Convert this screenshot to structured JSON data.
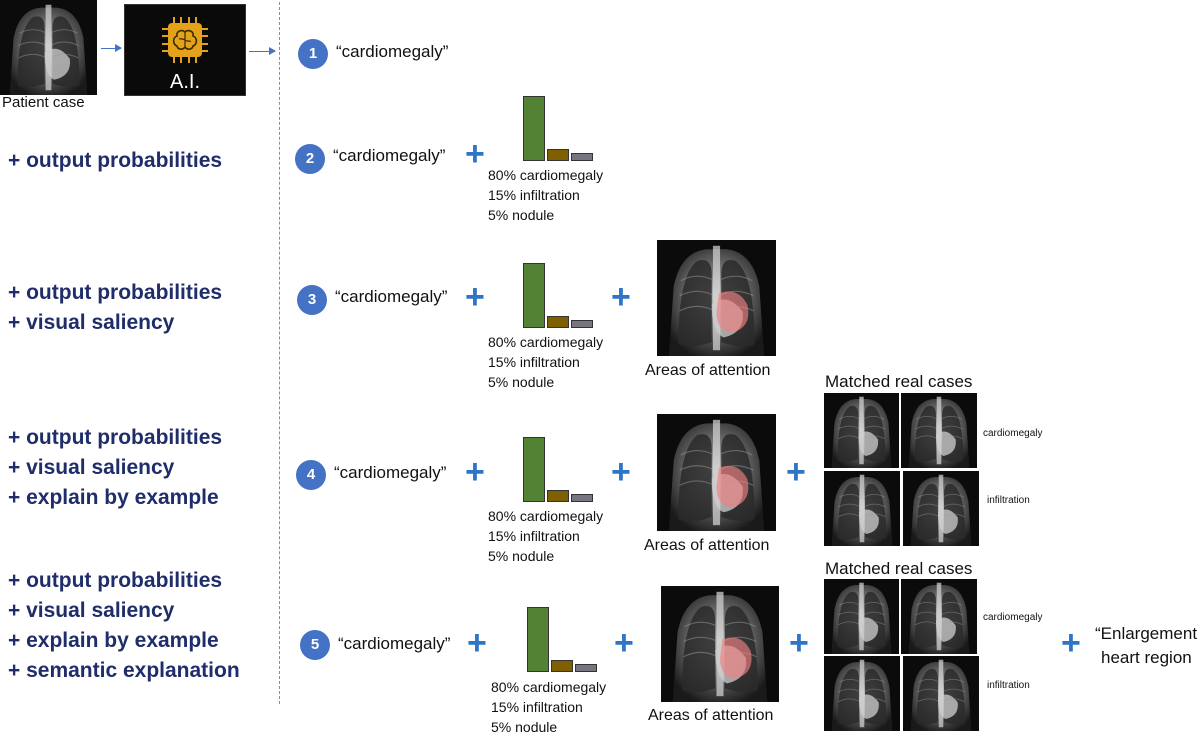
{
  "header": {
    "patient_case_label": "Patient case",
    "ai_label": "A.I."
  },
  "left_labels": {
    "row2": [
      "+ output probabilities"
    ],
    "row3": [
      "+ output probabilities",
      "+ visual saliency"
    ],
    "row4": [
      "+ output probabilities",
      "+ visual saliency",
      "+ explain by example"
    ],
    "row5": [
      "+ output probabilities",
      "+ visual saliency",
      "+ explain by example",
      "+ semantic explanation"
    ]
  },
  "rows": [
    {
      "number": "1",
      "prediction": "“cardiomegaly”"
    },
    {
      "number": "2",
      "prediction": "“cardiomegaly”"
    },
    {
      "number": "3",
      "prediction": "“cardiomegaly”"
    },
    {
      "number": "4",
      "prediction": "“cardiomegaly”"
    },
    {
      "number": "5",
      "prediction": "“cardiomegaly”"
    }
  ],
  "probabilities": {
    "values": [
      0.8,
      0.15,
      0.05
    ],
    "lines": [
      "80% cardiomegaly",
      "15% infiltration",
      "5% nodule"
    ],
    "colors": [
      "#548235",
      "#7f6000",
      "#767681"
    ]
  },
  "plus_symbol": "+",
  "saliency_caption": "Areas of attention",
  "matched": {
    "title": "Matched real cases",
    "labels": [
      "cardiomegaly",
      "infiltration"
    ]
  },
  "semantic_explanation": [
    "“Enlargement",
    "heart region"
  ],
  "colors": {
    "accent_blue": "#2e75c6",
    "badge_blue": "#4472c4",
    "label_navy": "#1f2d6b",
    "ai_chip": "#e3a21a",
    "saliency": "#f08080"
  }
}
